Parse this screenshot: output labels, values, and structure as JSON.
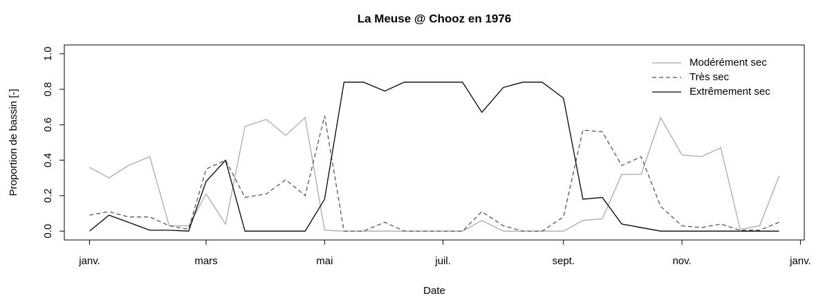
{
  "chart_data": {
    "type": "line",
    "title": "La Meuse @ Chooz en 1976",
    "xlabel": "Date",
    "ylabel": "Proportion de bassin [-]",
    "x": [
      0,
      10,
      20,
      31,
      41,
      51,
      60,
      70,
      80,
      91,
      101,
      111,
      121,
      131,
      141,
      152,
      162,
      172,
      182,
      192,
      202,
      213,
      223,
      233,
      244,
      254,
      264,
      274,
      284,
      294,
      305,
      315,
      325,
      335,
      345,
      355
    ],
    "series": [
      {
        "name": "Modérément sec",
        "color": "#aaaaaa",
        "dash": "solid",
        "values": [
          0.36,
          0.3,
          0.37,
          0.42,
          0.03,
          0.03,
          0.21,
          0.04,
          0.59,
          0.63,
          0.54,
          0.64,
          0.005,
          0,
          0,
          0,
          0,
          0,
          0,
          0,
          0.06,
          0,
          0,
          0,
          0,
          0.06,
          0.07,
          0.32,
          0.32,
          0.64,
          0.43,
          0.42,
          0.47,
          0.01,
          0.03,
          0.31
        ]
      },
      {
        "name": "Très sec",
        "color": "#555555",
        "dash": "dashed",
        "values": [
          0.09,
          0.11,
          0.08,
          0.08,
          0.03,
          0.01,
          0.35,
          0.4,
          0.19,
          0.21,
          0.29,
          0.2,
          0.65,
          0,
          0,
          0.05,
          0,
          0,
          0,
          0,
          0.11,
          0.03,
          0,
          0,
          0.08,
          0.57,
          0.56,
          0.37,
          0.42,
          0.14,
          0.03,
          0.02,
          0.04,
          0.005,
          0.005,
          0.05
        ]
      },
      {
        "name": "Extrêmement sec",
        "color": "#000000",
        "dash": "solid",
        "values": [
          0,
          0.09,
          0.05,
          0.005,
          0.005,
          0,
          0.28,
          0.4,
          0,
          0,
          0,
          0,
          0.18,
          0.84,
          0.84,
          0.79,
          0.84,
          0.84,
          0.84,
          0.84,
          0.67,
          0.81,
          0.84,
          0.84,
          0.75,
          0.18,
          0.19,
          0.04,
          0.02,
          0,
          0,
          0,
          0,
          0,
          0,
          0
        ]
      }
    ],
    "xlim": [
      -13,
      368
    ],
    "xticks": [
      {
        "value": 0,
        "label": "janv."
      },
      {
        "value": 60,
        "label": "mars"
      },
      {
        "value": 121,
        "label": "mai"
      },
      {
        "value": 182,
        "label": "juil."
      },
      {
        "value": 244,
        "label": "sept."
      },
      {
        "value": 305,
        "label": "nov."
      },
      {
        "value": 366,
        "label": "janv."
      }
    ],
    "ylim": [
      -0.05,
      1.05
    ],
    "yticks": [
      {
        "value": 0,
        "label": "0.0"
      },
      {
        "value": 0.2,
        "label": "0.2"
      },
      {
        "value": 0.4,
        "label": "0.4"
      },
      {
        "value": 0.6,
        "label": "0.6"
      },
      {
        "value": 0.8,
        "label": "0.8"
      },
      {
        "value": 1,
        "label": "1.0"
      }
    ],
    "legend": "topright"
  }
}
